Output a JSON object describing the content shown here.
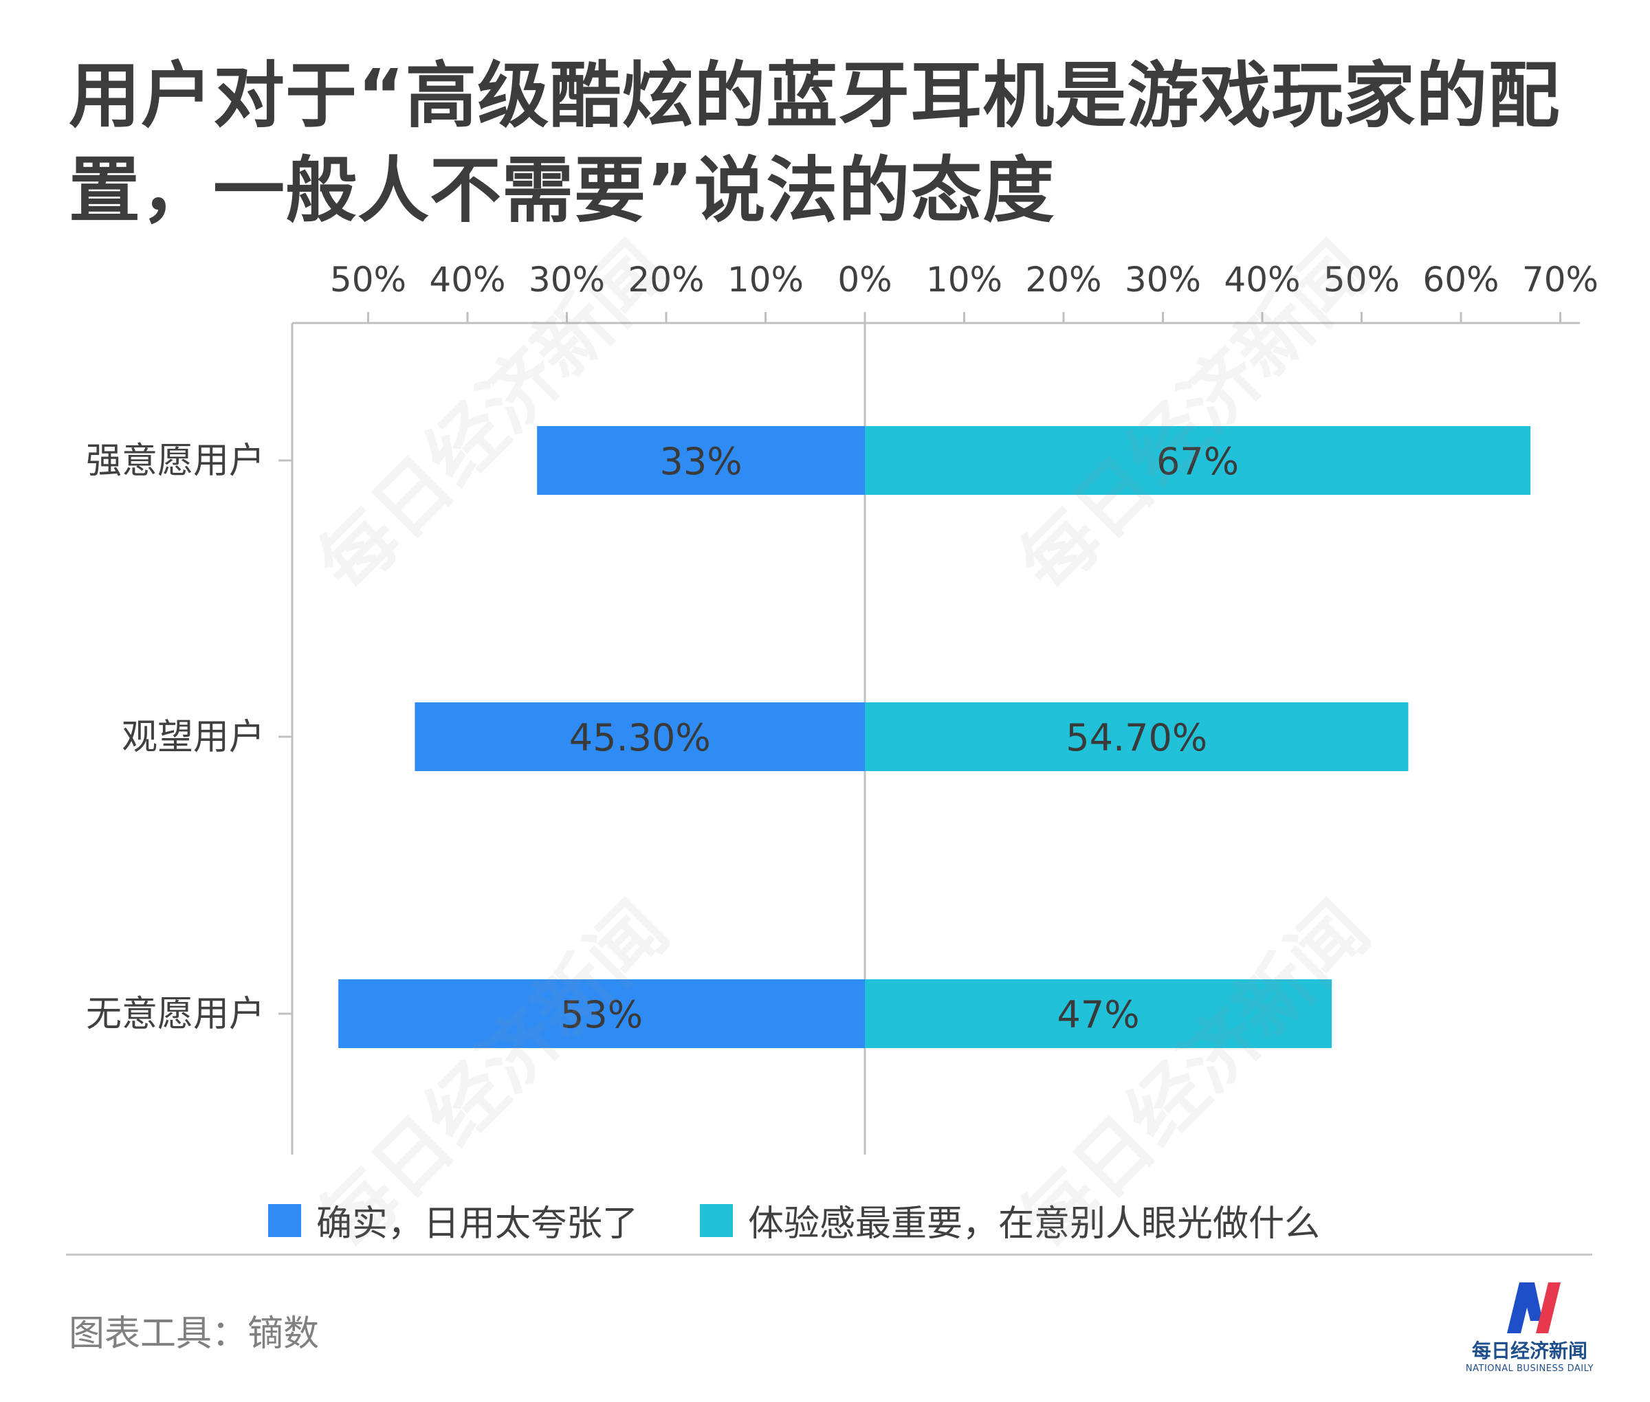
{
  "title": "用户对于“高级酷炫的蓝牙耳机是游戏玩家的配置，一般人不需要”说法的态度",
  "chart_data": {
    "type": "bar",
    "orientation": "horizontal-diverging",
    "categories": [
      "强意愿用户",
      "观望用户",
      "无意愿用户"
    ],
    "series": [
      {
        "name": "确实，日用太夸张了",
        "values": [
          33,
          45.3,
          53
        ],
        "labels": [
          "33%",
          "45.30%",
          "53%"
        ],
        "direction": "left",
        "color": "#2f8cf4"
      },
      {
        "name": "体验感最重要，在意别人眼光做什么",
        "values": [
          67,
          54.7,
          47
        ],
        "labels": [
          "67%",
          "54.70%",
          "47%"
        ],
        "direction": "right",
        "color": "#22c1da"
      }
    ],
    "xlim": [
      -58,
      72
    ],
    "xticks": [
      -50,
      -40,
      -30,
      -20,
      -10,
      0,
      10,
      20,
      30,
      40,
      50,
      60,
      70
    ],
    "xtick_labels": [
      "50%",
      "40%",
      "30%",
      "20%",
      "10%",
      "0%",
      "10%",
      "20%",
      "30%",
      "40%",
      "50%",
      "60%",
      "70%"
    ],
    "xaxis_position": "top",
    "legend_position": "bottom",
    "grid": false
  },
  "footer": {
    "source": "图表工具：镝数",
    "logo_cn": "每日经济新闻",
    "logo_en": "NATIONAL BUSINESS DAILY"
  },
  "watermark": "每日经济新闻",
  "colors": {
    "left": "#2f8cf4",
    "right": "#22c1da",
    "axis": "#c0c0c0",
    "text": "#404040"
  }
}
